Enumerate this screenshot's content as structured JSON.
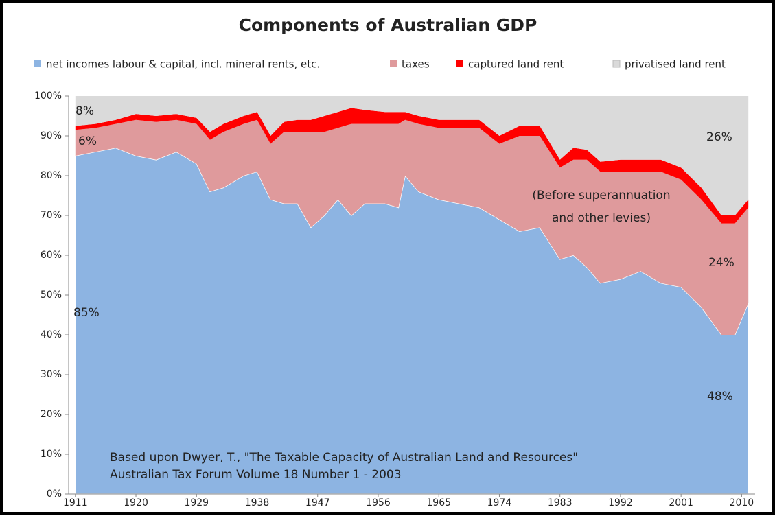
{
  "chart_data": {
    "type": "stacked_area",
    "title": "Components of Australian GDP",
    "x": [
      1911,
      1914,
      1917,
      1920,
      1923,
      1926,
      1929,
      1931,
      1933,
      1936,
      1938,
      1940,
      1942,
      1944,
      1946,
      1948,
      1950,
      1952,
      1954,
      1957,
      1959,
      1960,
      1962,
      1965,
      1968,
      1971,
      1974,
      1977,
      1980,
      1983,
      1985,
      1987,
      1989,
      1992,
      1995,
      1998,
      2001,
      2004,
      2007,
      2009,
      2011
    ],
    "series": [
      {
        "name": "net incomes labour & capital, incl. mineral rents, etc.",
        "color": "#8db4e2",
        "values": [
          85,
          86,
          87,
          85,
          84,
          86,
          83,
          76,
          77,
          80,
          81,
          74,
          73,
          73,
          67,
          70,
          74,
          70,
          73,
          73,
          72,
          80,
          76,
          74,
          73,
          72,
          69,
          66,
          67,
          59,
          60,
          57,
          53,
          54,
          56,
          53,
          52,
          47,
          40,
          40,
          48
        ]
      },
      {
        "name": "taxes",
        "color": "#df9a9c",
        "values": [
          6.5,
          6,
          6,
          9,
          9.5,
          8,
          10,
          13,
          14,
          13,
          13,
          14,
          18,
          18,
          24,
          21,
          18,
          23,
          20,
          20,
          21,
          14,
          17,
          18,
          19,
          20,
          19,
          24,
          23,
          23,
          24,
          27,
          28,
          27,
          25,
          28,
          27,
          27,
          28,
          28,
          24
        ]
      },
      {
        "name": "captured land rent",
        "color": "#ff0000",
        "values": [
          1,
          1,
          1,
          1.5,
          1.5,
          1.5,
          1.5,
          2,
          2,
          2,
          2,
          2,
          2.5,
          3,
          3,
          4,
          4,
          4,
          3.5,
          3,
          3,
          2,
          2,
          2,
          2,
          2,
          2,
          2.5,
          2.5,
          2,
          3,
          2.5,
          2.5,
          3,
          3,
          3,
          3,
          3,
          2,
          2,
          2
        ]
      },
      {
        "name": "privatised land rent",
        "color": "#dadada",
        "values": [
          7.5,
          7,
          6,
          4.5,
          5,
          4.5,
          5.5,
          9,
          7,
          5,
          4,
          10,
          6.5,
          6,
          6,
          5,
          4,
          3,
          3.5,
          4,
          4,
          4,
          5,
          6,
          6,
          6,
          10,
          7.5,
          7.5,
          16,
          13,
          13.5,
          16.5,
          16,
          16,
          16,
          18,
          23,
          30,
          30,
          26
        ]
      }
    ],
    "xlim": [
      1910,
      2012
    ],
    "xticks": [
      1911,
      1920,
      1929,
      1938,
      1947,
      1956,
      1965,
      1974,
      1983,
      1992,
      2001,
      2010
    ],
    "ylim": [
      0,
      100
    ],
    "yticks": [
      {
        "value": 0,
        "label": "0%"
      },
      {
        "value": 10,
        "label": "10%"
      },
      {
        "value": 20,
        "label": "20%"
      },
      {
        "value": 30,
        "label": "30%"
      },
      {
        "value": 40,
        "label": "40%"
      },
      {
        "value": 50,
        "label": "50%"
      },
      {
        "value": 60,
        "label": "60%"
      },
      {
        "value": 70,
        "label": "70%"
      },
      {
        "value": 80,
        "label": "80%"
      },
      {
        "value": 90,
        "label": "90%"
      },
      {
        "value": 100,
        "label": "100%"
      }
    ],
    "legend": "top",
    "annotations": [
      "8%",
      "6%",
      "85%",
      "(Before superannuation",
      "and other levies)",
      "26%",
      "24%",
      "48%",
      "Based upon Dwyer, T., \"The Taxable Capacity of Australian Land and Resources\"",
      "Australian Tax Forum Volume 18 Number 1 - 2003"
    ]
  }
}
